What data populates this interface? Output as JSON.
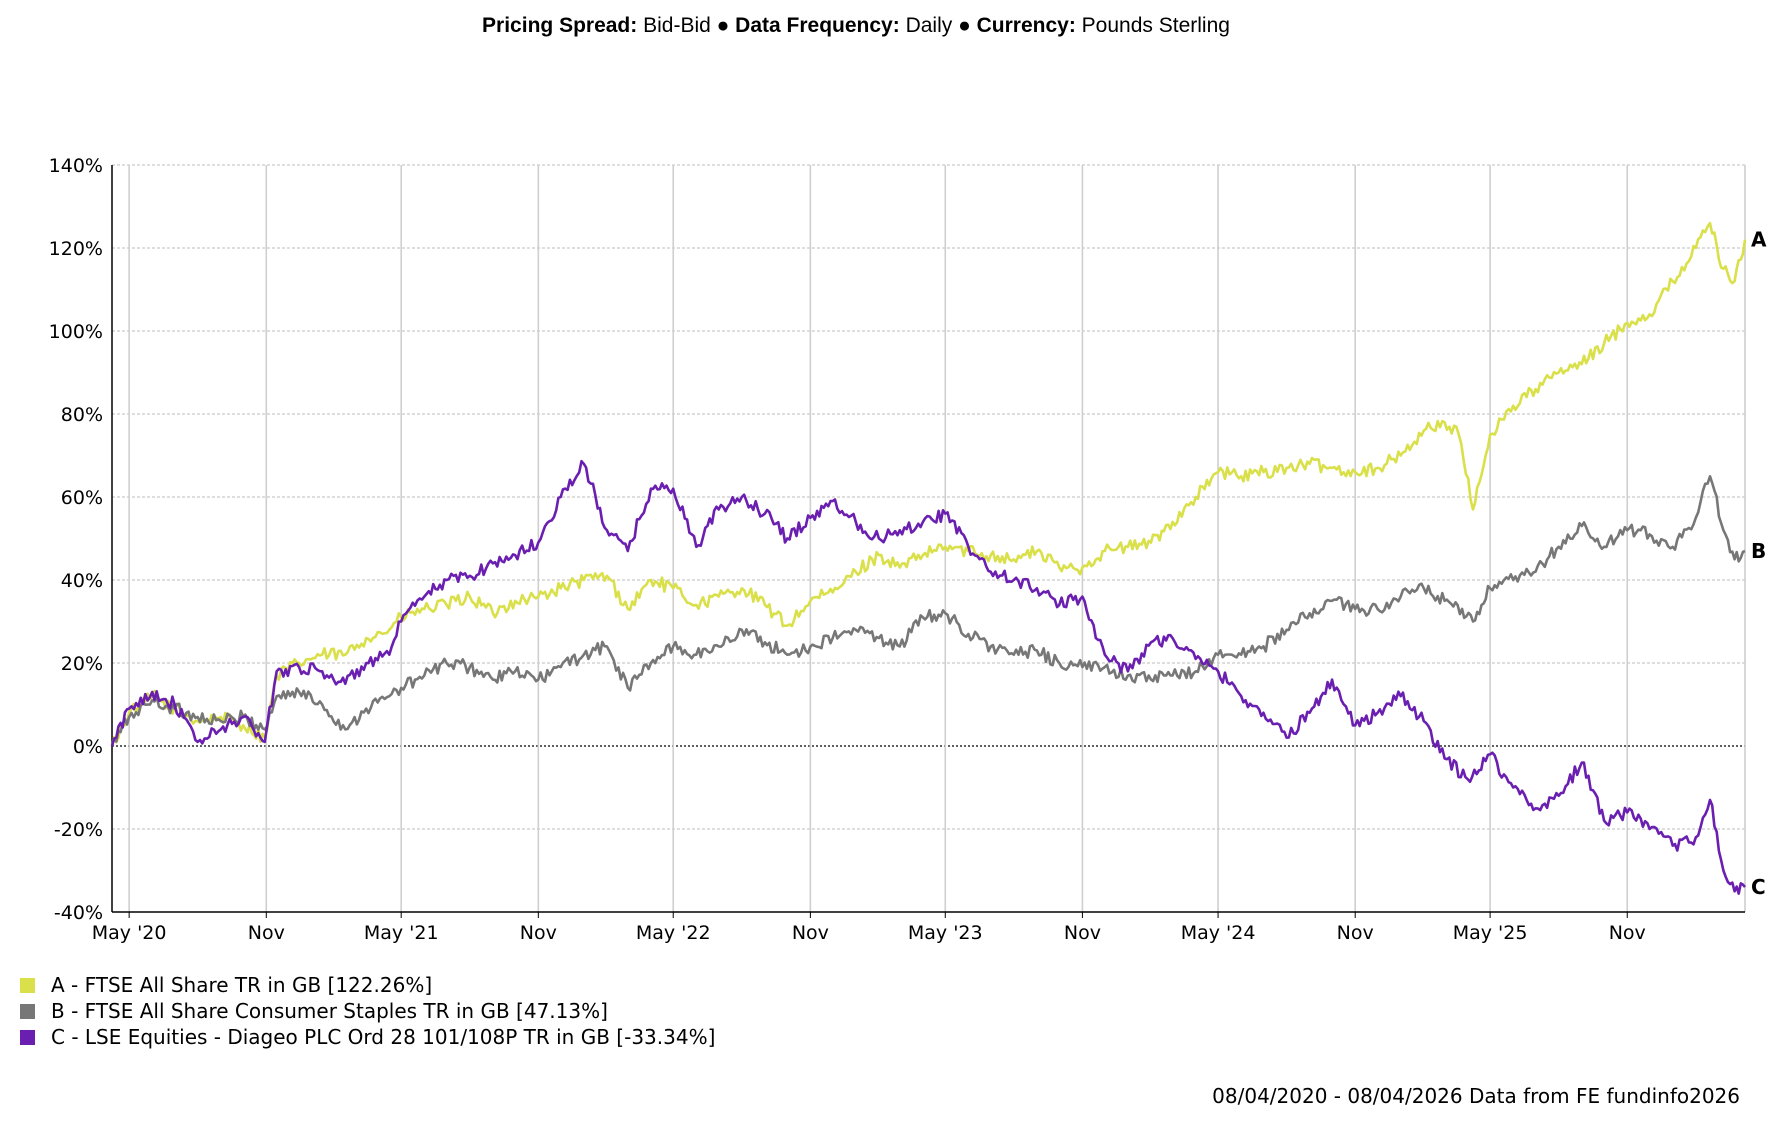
{
  "header": {
    "pricing_label": "Pricing Spread:",
    "pricing_value": "Bid-Bid",
    "frequency_label": "Data Frequency:",
    "frequency_value": "Daily",
    "currency_label": "Currency:",
    "currency_value": "Pounds Sterling",
    "separator": "●"
  },
  "legend": [
    {
      "text": "A - FTSE All Share TR in GB [122.26%]",
      "color": "#d9e04a"
    },
    {
      "text": "B - FTSE All Share Consumer Staples TR in GB [47.13%]",
      "color": "#777777"
    },
    {
      "text": "C - LSE Equities - Diageo PLC Ord 28 101/108P TR in GB [-33.34%]",
      "color": "#6a1fb0"
    }
  ],
  "footer": "08/04/2020 - 08/04/2026 Data from FE fundinfo2026",
  "chart_data": {
    "type": "line",
    "x_range": [
      "2020-04-08",
      "2026-04-08"
    ],
    "ylim": [
      -40,
      140
    ],
    "y_ticks": [
      140,
      120,
      100,
      80,
      60,
      40,
      20,
      0,
      -20,
      -40
    ],
    "y_tick_labels": [
      "140%",
      "120%",
      "100%",
      "80%",
      "60%",
      "40%",
      "20%",
      "0%",
      "-20%",
      "-40%"
    ],
    "x_ticks": [
      {
        "date": "2020-05-01",
        "label": "May '20"
      },
      {
        "date": "2020-11-01",
        "label": "Nov"
      },
      {
        "date": "2021-05-01",
        "label": "May '21"
      },
      {
        "date": "2021-11-01",
        "label": "Nov"
      },
      {
        "date": "2022-05-01",
        "label": "May '22"
      },
      {
        "date": "2022-11-01",
        "label": "Nov"
      },
      {
        "date": "2023-05-01",
        "label": "May '23"
      },
      {
        "date": "2023-11-01",
        "label": "Nov"
      },
      {
        "date": "2024-05-01",
        "label": "May '24"
      },
      {
        "date": "2024-11-01",
        "label": "Nov"
      },
      {
        "date": "2025-05-01",
        "label": "May '25"
      },
      {
        "date": "2025-11-01",
        "label": "Nov"
      }
    ],
    "grid": true,
    "zero_line": "dotted",
    "series": [
      {
        "name": "A",
        "color": "#d9e04a",
        "end_label": "A",
        "points": [
          [
            "2020-04-08",
            0
          ],
          [
            "2020-05-01",
            8
          ],
          [
            "2020-06-01",
            12
          ],
          [
            "2020-07-01",
            9
          ],
          [
            "2020-08-01",
            6
          ],
          [
            "2020-09-01",
            7
          ],
          [
            "2020-10-01",
            5
          ],
          [
            "2020-10-30",
            2
          ],
          [
            "2020-11-15",
            17
          ],
          [
            "2020-12-15",
            20
          ],
          [
            "2021-01-15",
            22
          ],
          [
            "2021-02-15",
            22
          ],
          [
            "2021-03-15",
            26
          ],
          [
            "2021-04-15",
            28
          ],
          [
            "2021-05-01",
            31
          ],
          [
            "2021-06-01",
            33
          ],
          [
            "2021-07-01",
            34
          ],
          [
            "2021-08-01",
            36
          ],
          [
            "2021-09-01",
            32
          ],
          [
            "2021-10-01",
            35
          ],
          [
            "2021-11-01",
            36
          ],
          [
            "2021-12-01",
            38
          ],
          [
            "2022-01-01",
            40
          ],
          [
            "2022-02-01",
            41
          ],
          [
            "2022-03-01",
            33
          ],
          [
            "2022-04-01",
            40
          ],
          [
            "2022-05-01",
            38
          ],
          [
            "2022-06-01",
            34
          ],
          [
            "2022-07-01",
            36
          ],
          [
            "2022-08-01",
            38
          ],
          [
            "2022-09-01",
            34
          ],
          [
            "2022-10-01",
            29
          ],
          [
            "2022-11-01",
            35
          ],
          [
            "2022-12-01",
            37
          ],
          [
            "2023-01-01",
            42
          ],
          [
            "2023-02-01",
            46
          ],
          [
            "2023-03-01",
            43
          ],
          [
            "2023-04-01",
            46
          ],
          [
            "2023-05-01",
            48
          ],
          [
            "2023-06-01",
            47
          ],
          [
            "2023-07-01",
            46
          ],
          [
            "2023-08-01",
            45
          ],
          [
            "2023-09-01",
            47
          ],
          [
            "2023-10-01",
            43
          ],
          [
            "2023-11-01",
            43
          ],
          [
            "2023-12-01",
            47
          ],
          [
            "2024-01-01",
            48
          ],
          [
            "2024-02-01",
            49
          ],
          [
            "2024-03-01",
            54
          ],
          [
            "2024-04-01",
            60
          ],
          [
            "2024-05-01",
            66
          ],
          [
            "2024-06-01",
            65
          ],
          [
            "2024-07-01",
            66
          ],
          [
            "2024-08-01",
            67
          ],
          [
            "2024-09-01",
            68
          ],
          [
            "2024-10-01",
            67
          ],
          [
            "2024-11-01",
            66
          ],
          [
            "2024-12-01",
            67
          ],
          [
            "2025-01-01",
            70
          ],
          [
            "2025-02-01",
            76
          ],
          [
            "2025-03-01",
            78
          ],
          [
            "2025-03-20",
            75
          ],
          [
            "2025-04-08",
            57
          ],
          [
            "2025-04-25",
            70
          ],
          [
            "2025-05-01",
            75
          ],
          [
            "2025-06-01",
            82
          ],
          [
            "2025-07-01",
            86
          ],
          [
            "2025-08-01",
            90
          ],
          [
            "2025-09-01",
            92
          ],
          [
            "2025-10-01",
            97
          ],
          [
            "2025-11-01",
            102
          ],
          [
            "2025-12-01",
            104
          ],
          [
            "2026-01-01",
            112
          ],
          [
            "2026-02-01",
            120
          ],
          [
            "2026-02-20",
            126
          ],
          [
            "2026-03-10",
            115
          ],
          [
            "2026-03-25",
            112
          ],
          [
            "2026-04-08",
            122
          ]
        ]
      },
      {
        "name": "B",
        "color": "#777777",
        "end_label": "B",
        "points": [
          [
            "2020-04-08",
            0
          ],
          [
            "2020-05-01",
            7
          ],
          [
            "2020-06-01",
            11
          ],
          [
            "2020-07-01",
            9
          ],
          [
            "2020-08-01",
            7
          ],
          [
            "2020-09-01",
            6
          ],
          [
            "2020-10-01",
            7
          ],
          [
            "2020-10-30",
            4
          ],
          [
            "2020-11-15",
            12
          ],
          [
            "2020-12-15",
            13
          ],
          [
            "2021-01-15",
            10
          ],
          [
            "2021-02-15",
            4
          ],
          [
            "2021-03-15",
            9
          ],
          [
            "2021-04-15",
            12
          ],
          [
            "2021-05-01",
            14
          ],
          [
            "2021-06-01",
            17
          ],
          [
            "2021-07-01",
            20
          ],
          [
            "2021-08-01",
            19
          ],
          [
            "2021-09-01",
            16
          ],
          [
            "2021-10-01",
            18
          ],
          [
            "2021-11-01",
            16
          ],
          [
            "2021-12-01",
            19
          ],
          [
            "2022-01-01",
            22
          ],
          [
            "2022-02-01",
            24
          ],
          [
            "2022-03-01",
            14
          ],
          [
            "2022-04-01",
            20
          ],
          [
            "2022-05-01",
            24
          ],
          [
            "2022-06-01",
            22
          ],
          [
            "2022-07-01",
            24
          ],
          [
            "2022-08-01",
            28
          ],
          [
            "2022-09-01",
            25
          ],
          [
            "2022-10-01",
            22
          ],
          [
            "2022-11-01",
            24
          ],
          [
            "2022-12-01",
            26
          ],
          [
            "2023-01-01",
            28
          ],
          [
            "2023-02-01",
            26
          ],
          [
            "2023-03-01",
            24
          ],
          [
            "2023-04-01",
            31
          ],
          [
            "2023-05-01",
            32
          ],
          [
            "2023-06-01",
            27
          ],
          [
            "2023-07-01",
            24
          ],
          [
            "2023-08-01",
            22
          ],
          [
            "2023-09-01",
            23
          ],
          [
            "2023-10-01",
            20
          ],
          [
            "2023-11-01",
            19
          ],
          [
            "2023-12-01",
            19
          ],
          [
            "2024-01-01",
            17
          ],
          [
            "2024-02-01",
            16
          ],
          [
            "2024-03-01",
            17
          ],
          [
            "2024-04-01",
            18
          ],
          [
            "2024-05-01",
            22
          ],
          [
            "2024-06-01",
            22
          ],
          [
            "2024-07-01",
            24
          ],
          [
            "2024-08-01",
            28
          ],
          [
            "2024-09-01",
            32
          ],
          [
            "2024-10-01",
            35
          ],
          [
            "2024-11-01",
            33
          ],
          [
            "2024-12-01",
            33
          ],
          [
            "2025-01-01",
            36
          ],
          [
            "2025-02-01",
            38
          ],
          [
            "2025-03-01",
            35
          ],
          [
            "2025-04-08",
            30
          ],
          [
            "2025-05-01",
            38
          ],
          [
            "2025-06-01",
            40
          ],
          [
            "2025-07-01",
            42
          ],
          [
            "2025-08-01",
            48
          ],
          [
            "2025-09-01",
            53
          ],
          [
            "2025-10-01",
            48
          ],
          [
            "2025-11-01",
            52
          ],
          [
            "2025-12-01",
            51
          ],
          [
            "2026-01-01",
            48
          ],
          [
            "2026-02-01",
            55
          ],
          [
            "2026-02-20",
            65
          ],
          [
            "2026-03-10",
            52
          ],
          [
            "2026-03-25",
            45
          ],
          [
            "2026-04-08",
            47
          ]
        ]
      },
      {
        "name": "C",
        "color": "#6a1fb0",
        "end_label": "C",
        "points": [
          [
            "2020-04-08",
            0
          ],
          [
            "2020-05-01",
            9
          ],
          [
            "2020-06-01",
            13
          ],
          [
            "2020-07-01",
            10
          ],
          [
            "2020-08-01",
            1
          ],
          [
            "2020-09-01",
            4
          ],
          [
            "2020-10-01",
            7
          ],
          [
            "2020-10-30",
            1
          ],
          [
            "2020-11-15",
            18
          ],
          [
            "2020-12-15",
            19
          ],
          [
            "2021-01-15",
            18
          ],
          [
            "2021-02-15",
            15
          ],
          [
            "2021-03-15",
            20
          ],
          [
            "2021-04-15",
            22
          ],
          [
            "2021-05-01",
            30
          ],
          [
            "2021-06-01",
            36
          ],
          [
            "2021-07-01",
            40
          ],
          [
            "2021-08-01",
            41
          ],
          [
            "2021-09-01",
            44
          ],
          [
            "2021-10-01",
            46
          ],
          [
            "2021-11-01",
            49
          ],
          [
            "2021-12-01",
            60
          ],
          [
            "2022-01-01",
            68
          ],
          [
            "2022-02-01",
            52
          ],
          [
            "2022-03-01",
            47
          ],
          [
            "2022-04-01",
            62
          ],
          [
            "2022-05-01",
            62
          ],
          [
            "2022-06-01",
            48
          ],
          [
            "2022-07-01",
            57
          ],
          [
            "2022-08-01",
            60
          ],
          [
            "2022-09-01",
            56
          ],
          [
            "2022-10-01",
            50
          ],
          [
            "2022-11-01",
            55
          ],
          [
            "2022-12-01",
            59
          ],
          [
            "2023-01-01",
            54
          ],
          [
            "2023-02-01",
            50
          ],
          [
            "2023-03-01",
            52
          ],
          [
            "2023-04-01",
            54
          ],
          [
            "2023-05-01",
            56
          ],
          [
            "2023-06-01",
            48
          ],
          [
            "2023-07-01",
            42
          ],
          [
            "2023-08-01",
            40
          ],
          [
            "2023-09-01",
            38
          ],
          [
            "2023-10-01",
            34
          ],
          [
            "2023-11-01",
            36
          ],
          [
            "2023-12-01",
            22
          ],
          [
            "2024-01-01",
            18
          ],
          [
            "2024-02-01",
            25
          ],
          [
            "2024-03-01",
            26
          ],
          [
            "2024-04-01",
            21
          ],
          [
            "2024-05-01",
            18
          ],
          [
            "2024-06-01",
            12
          ],
          [
            "2024-07-01",
            8
          ],
          [
            "2024-08-01",
            2
          ],
          [
            "2024-09-01",
            8
          ],
          [
            "2024-10-01",
            16
          ],
          [
            "2024-11-01",
            5
          ],
          [
            "2024-12-01",
            8
          ],
          [
            "2025-01-01",
            12
          ],
          [
            "2025-02-01",
            6
          ],
          [
            "2025-03-01",
            -3
          ],
          [
            "2025-04-01",
            -8
          ],
          [
            "2025-05-01",
            -2
          ],
          [
            "2025-06-01",
            -10
          ],
          [
            "2025-07-01",
            -15
          ],
          [
            "2025-08-01",
            -12
          ],
          [
            "2025-09-01",
            -4
          ],
          [
            "2025-10-01",
            -18
          ],
          [
            "2025-11-01",
            -16
          ],
          [
            "2025-12-01",
            -20
          ],
          [
            "2026-01-01",
            -24
          ],
          [
            "2026-02-01",
            -22
          ],
          [
            "2026-02-20",
            -13
          ],
          [
            "2026-03-10",
            -30
          ],
          [
            "2026-03-25",
            -35
          ],
          [
            "2026-04-08",
            -34
          ]
        ]
      }
    ]
  }
}
